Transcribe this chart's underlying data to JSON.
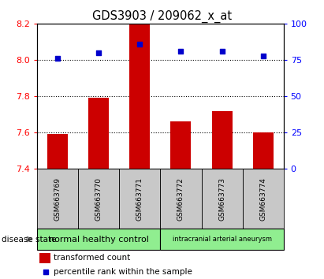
{
  "title": "GDS3903 / 209062_x_at",
  "samples": [
    "GSM663769",
    "GSM663770",
    "GSM663771",
    "GSM663772",
    "GSM663773",
    "GSM663774"
  ],
  "bar_values": [
    7.59,
    7.79,
    8.2,
    7.66,
    7.72,
    7.6
  ],
  "bar_bottom": 7.4,
  "scatter_values": [
    76,
    80,
    86,
    81,
    81,
    78
  ],
  "ylim_left": [
    7.4,
    8.2
  ],
  "ylim_right": [
    0,
    100
  ],
  "yticks_left": [
    7.4,
    7.6,
    7.8,
    8.0,
    8.2
  ],
  "yticks_right": [
    0,
    25,
    50,
    75,
    100
  ],
  "bar_color": "#cc0000",
  "scatter_color": "#0000cc",
  "group1_label": "normal healthy control",
  "group2_label": "intracranial arterial aneurysm",
  "group_color": "#90ee90",
  "sample_box_color": "#c8c8c8",
  "disease_state_label": "disease state",
  "legend_bar_label": "transformed count",
  "legend_scatter_label": "percentile rank within the sample",
  "dotted_lines": [
    7.6,
    7.8,
    8.0
  ],
  "figsize": [
    4.11,
    3.54
  ],
  "dpi": 100
}
